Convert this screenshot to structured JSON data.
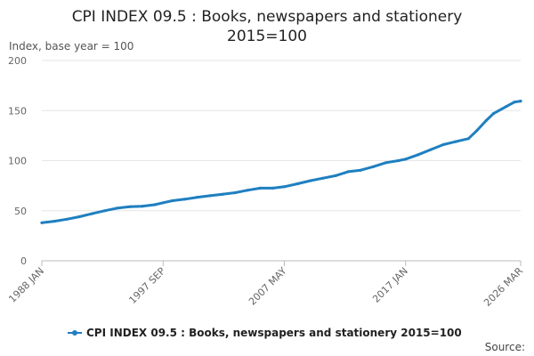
{
  "chart_data": {
    "type": "line",
    "title_line1": "CPI INDEX 09.5 : Books, newspapers and stationery",
    "title_line2": "2015=100",
    "ylabel": "Index, base year = 100",
    "ylim": [
      0,
      200
    ],
    "yticks": [
      "0",
      "50",
      "100",
      "150",
      "200"
    ],
    "xlim": [
      "1988-01",
      "2026-03"
    ],
    "xticks": [
      {
        "label": "1988 JAN",
        "date": "1988-01"
      },
      {
        "label": "1997 SEP",
        "date": "1997-09"
      },
      {
        "label": "2007 MAY",
        "date": "2007-05"
      },
      {
        "label": "2017 JAN",
        "date": "2017-01"
      },
      {
        "label": "2026 MAR",
        "date": "2026-03"
      }
    ],
    "grid": true,
    "legend_position": "bottom",
    "series": [
      {
        "name": "CPI INDEX 09.5 : Books, newspapers and stationery 2015=100",
        "color": "#1f7fc0",
        "points": [
          [
            "1988-01",
            38.0
          ],
          [
            "1989-01",
            39.5
          ],
          [
            "1990-01",
            41.5
          ],
          [
            "1991-01",
            44.0
          ],
          [
            "1992-01",
            47.0
          ],
          [
            "1993-01",
            50.0
          ],
          [
            "1994-01",
            52.5
          ],
          [
            "1995-01",
            54.0
          ],
          [
            "1996-01",
            54.5
          ],
          [
            "1997-01",
            56.0
          ],
          [
            "1997-09",
            58.0
          ],
          [
            "1998-06",
            60.0
          ],
          [
            "1999-06",
            61.5
          ],
          [
            "2000-06",
            63.5
          ],
          [
            "2001-06",
            65.0
          ],
          [
            "2002-06",
            66.5
          ],
          [
            "2003-06",
            68.0
          ],
          [
            "2004-06",
            70.5
          ],
          [
            "2005-06",
            72.5
          ],
          [
            "2006-06",
            72.5
          ],
          [
            "2007-05",
            74.0
          ],
          [
            "2008-06",
            77.0
          ],
          [
            "2009-06",
            80.0
          ],
          [
            "2010-06",
            82.5
          ],
          [
            "2011-06",
            85.0
          ],
          [
            "2012-06",
            89.0
          ],
          [
            "2013-06",
            90.5
          ],
          [
            "2014-06",
            94.0
          ],
          [
            "2015-06",
            98.0
          ],
          [
            "2016-06",
            100.0
          ],
          [
            "2017-01",
            101.5
          ],
          [
            "2018-01",
            106.0
          ],
          [
            "2019-01",
            111.0
          ],
          [
            "2020-01",
            116.0
          ],
          [
            "2021-01",
            119.0
          ],
          [
            "2022-01",
            122.0
          ],
          [
            "2022-09",
            130.0
          ],
          [
            "2023-06",
            140.0
          ],
          [
            "2024-01",
            147.0
          ],
          [
            "2025-01",
            154.0
          ],
          [
            "2025-09",
            158.5
          ],
          [
            "2026-03",
            159.5
          ]
        ]
      }
    ],
    "source_label": "Source:"
  }
}
